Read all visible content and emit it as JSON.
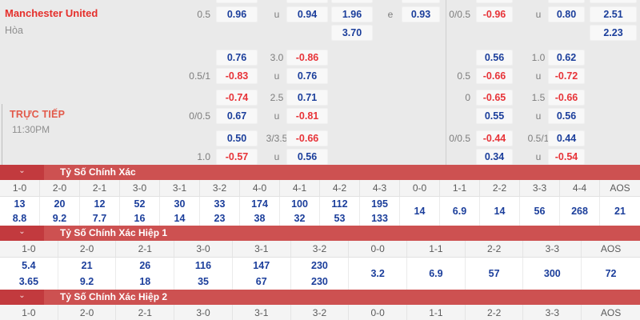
{
  "colors": {
    "odds_blue": "#1b3e9b",
    "odds_red": "#e73338",
    "banner_red": "#cd5151",
    "banner_dark": "#c23a3e",
    "team_red": "#e52f2b",
    "live_red": "#e25a4a"
  },
  "match": {
    "home": "Manchester United",
    "draw_label": "Hòa",
    "live_label": "TRỰC TIẾP",
    "time": "11:30PM"
  },
  "odds_left_rows": [
    {
      "y": 0,
      "hc": "0.5",
      "b1": "0.96",
      "line": "u",
      "b2": "0.94",
      "b3": "1.96",
      "e": "e",
      "b4": "0.93"
    },
    {
      "y": 1,
      "b3": "3.70"
    },
    {
      "y": 2,
      "b1": "0.76",
      "line": "3.0",
      "b2": "-0.86"
    },
    {
      "y": 3,
      "hc": "0.5/1",
      "b1": "-0.83",
      "line": "u",
      "b2": "0.76"
    },
    {
      "y": 4,
      "b1": "-0.74",
      "line": "2.5",
      "b2": "0.71"
    },
    {
      "y": 5,
      "hc": "0/0.5",
      "b1": "0.67",
      "line": "u",
      "b2": "-0.81"
    },
    {
      "y": 6,
      "b1": "0.50",
      "line": "3/3.5",
      "b2": "-0.66"
    },
    {
      "y": 7,
      "hc": "1.0",
      "b1": "-0.57",
      "line": "u",
      "b2": "0.56"
    }
  ],
  "odds_right_rows": [
    {
      "y": 0,
      "hc": "0/0.5",
      "b1": "-0.96",
      "line": "u",
      "b2": "0.80",
      "b5": "2.51"
    },
    {
      "y": 1,
      "b5": "2.23"
    },
    {
      "y": 2,
      "b1": "0.56",
      "line": "1.0",
      "b2": "0.62"
    },
    {
      "y": 3,
      "hc": "0.5",
      "b1": "-0.66",
      "line": "u",
      "b2": "-0.72"
    },
    {
      "y": 4,
      "hc": "0",
      "b1": "-0.65",
      "line": "1.5",
      "b2": "-0.66"
    },
    {
      "y": 5,
      "b1": "0.55",
      "line": "u",
      "b2": "0.56"
    },
    {
      "y": 6,
      "hc": "0/0.5",
      "b1": "-0.44",
      "line": "0.5/1",
      "b2": "0.44"
    },
    {
      "y": 7,
      "b1": "0.34",
      "line": "u",
      "b2": "-0.54"
    }
  ],
  "score_sections": [
    {
      "title": "Tỷ Số Chính Xác",
      "chevron": "⌄",
      "columns": [
        "1-0",
        "2-0",
        "2-1",
        "3-0",
        "3-1",
        "3-2",
        "4-0",
        "4-1",
        "4-2",
        "4-3",
        "0-0",
        "1-1",
        "2-2",
        "3-3",
        "4-4",
        "AOS"
      ],
      "pairs": 10,
      "row_top": [
        "13",
        "20",
        "12",
        "52",
        "30",
        "33",
        "174",
        "100",
        "112",
        "195"
      ],
      "row_bottom": [
        "8.8",
        "9.2",
        "7.7",
        "16",
        "14",
        "23",
        "38",
        "32",
        "53",
        "133"
      ],
      "singles": [
        "14",
        "6.9",
        "14",
        "56",
        "268",
        "21"
      ]
    },
    {
      "title": "Tỷ Số Chính Xác Hiệp 1",
      "chevron": "⌄",
      "columns": [
        "1-0",
        "2-0",
        "2-1",
        "3-0",
        "3-1",
        "3-2",
        "0-0",
        "1-1",
        "2-2",
        "3-3",
        "AOS"
      ],
      "pairs": 6,
      "row_top": [
        "5.4",
        "21",
        "26",
        "116",
        "147",
        "230"
      ],
      "row_bottom": [
        "3.65",
        "9.2",
        "18",
        "35",
        "67",
        "230"
      ],
      "singles": [
        "3.2",
        "6.9",
        "57",
        "300",
        "72"
      ]
    },
    {
      "title": "Tỷ Số Chính Xác Hiệp 2",
      "chevron": "⌄",
      "columns": [
        "1-0",
        "2-0",
        "2-1",
        "3-0",
        "3-1",
        "3-2",
        "0-0",
        "1-1",
        "2-2",
        "3-3",
        "AOS"
      ],
      "pairs": 6,
      "row_top": [],
      "row_bottom": [],
      "singles": []
    }
  ]
}
